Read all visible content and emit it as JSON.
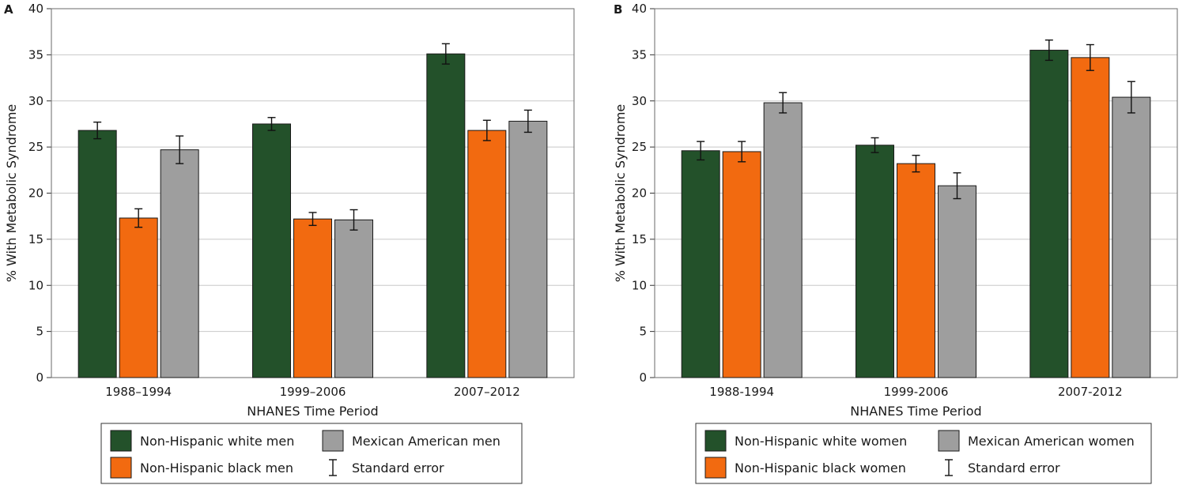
{
  "chart_data": [
    {
      "type": "bar",
      "panel_label": "A",
      "xlabel": "NHANES Time Period",
      "ylabel": "% With Metabolic Syndrome",
      "ylim": [
        0,
        40
      ],
      "yticks": [
        0,
        5,
        10,
        15,
        20,
        25,
        30,
        35,
        40
      ],
      "grid": true,
      "categories": [
        "1988–1994",
        "1999–2006",
        "2007–2012"
      ],
      "series": [
        {
          "name": "Non-Hispanic white men",
          "color": "#23512a",
          "values": [
            26.8,
            27.5,
            35.1
          ],
          "se": [
            0.9,
            0.7,
            1.1
          ]
        },
        {
          "name": "Non-Hispanic black men",
          "color": "#f26a10",
          "values": [
            17.3,
            17.2,
            26.8
          ],
          "se": [
            1.0,
            0.7,
            1.1
          ]
        },
        {
          "name": "Mexican American men",
          "color": "#9e9e9e",
          "values": [
            24.7,
            17.1,
            27.8
          ],
          "se": [
            1.5,
            1.1,
            1.2
          ]
        }
      ],
      "legend": {
        "placement": "bottom",
        "error_label": "Standard error"
      }
    },
    {
      "type": "bar",
      "panel_label": "B",
      "xlabel": "NHANES Time Period",
      "ylabel": "% With Metabolic Syndrome",
      "ylim": [
        0,
        40
      ],
      "yticks": [
        0,
        5,
        10,
        15,
        20,
        25,
        30,
        35,
        40
      ],
      "grid": true,
      "categories": [
        "1988-1994",
        "1999-2006",
        "2007-2012"
      ],
      "series": [
        {
          "name": "Non-Hispanic white women",
          "color": "#23512a",
          "values": [
            24.6,
            25.2,
            35.5
          ],
          "se": [
            1.0,
            0.8,
            1.1
          ]
        },
        {
          "name": "Non-Hispanic black women",
          "color": "#f26a10",
          "values": [
            24.5,
            23.2,
            34.7
          ],
          "se": [
            1.1,
            0.9,
            1.4
          ]
        },
        {
          "name": "Mexican American women",
          "color": "#9e9e9e",
          "values": [
            29.8,
            20.8,
            30.4
          ],
          "se": [
            1.1,
            1.4,
            1.7
          ]
        }
      ],
      "legend": {
        "placement": "bottom",
        "error_label": "Standard error"
      }
    }
  ]
}
